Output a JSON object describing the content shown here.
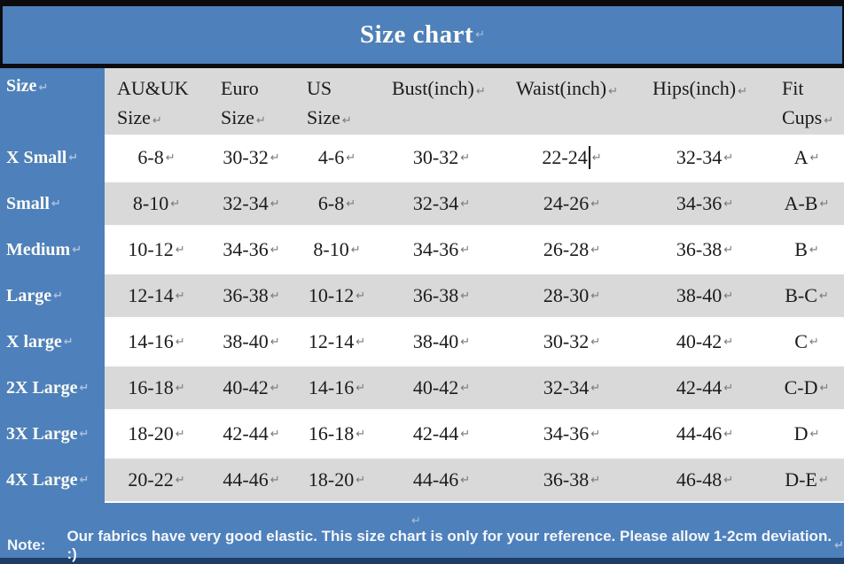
{
  "title": {
    "text": "Size chart"
  },
  "marks": {
    "pilcrow": "↵"
  },
  "table": {
    "corner": "Size",
    "headers": [
      {
        "text": "AU&UK\nSize"
      },
      {
        "text": "Euro\nSize"
      },
      {
        "text": "US\nSize"
      },
      {
        "text": "Bust(inch)"
      },
      {
        "text": "Waist(inch)"
      },
      {
        "text": "Hips(inch)"
      },
      {
        "text": "Fit\nCups"
      }
    ],
    "rows": [
      {
        "label": "X Small",
        "values": [
          "6-8",
          "30-32",
          "4-6",
          "30-32",
          "22-24",
          "32-34",
          "A"
        ]
      },
      {
        "label": "Small",
        "values": [
          "8-10",
          "32-34",
          "6-8",
          "32-34",
          "24-26",
          "34-36",
          "A-B"
        ]
      },
      {
        "label": "Medium",
        "values": [
          "10-12",
          "34-36",
          "8-10",
          "34-36",
          "26-28",
          "36-38",
          "B"
        ]
      },
      {
        "label": "Large",
        "values": [
          "12-14",
          "36-38",
          "10-12",
          "36-38",
          "28-30",
          "38-40",
          "B-C"
        ]
      },
      {
        "label": "X large",
        "values": [
          "14-16",
          "38-40",
          "12-14",
          "38-40",
          "30-32",
          "40-42",
          "C"
        ]
      },
      {
        "label": "2X Large",
        "values": [
          "16-18",
          "40-42",
          "14-16",
          "40-42",
          "32-34",
          "42-44",
          "C-D"
        ]
      },
      {
        "label": "3X Large",
        "values": [
          "18-20",
          "42-44",
          "16-18",
          "42-44",
          "34-36",
          "44-46",
          "D"
        ]
      },
      {
        "label": "4X Large",
        "values": [
          "20-22",
          "44-46",
          "18-20",
          "44-46",
          "36-38",
          "46-48",
          "D-E"
        ]
      }
    ]
  },
  "note": {
    "label": "Note:",
    "text": "Our fabrics have very good elastic. This size chart is only for your reference. Please allow 1-2cm deviation. :)"
  },
  "colors": {
    "accent_blue": "#4e80bb",
    "row_gray": "#d9d9d9",
    "border_black": "#0c0c10",
    "bottom_navy": "#1d3d66",
    "text_dark": "#1b1b1b",
    "text_white": "#fdfdf5"
  }
}
